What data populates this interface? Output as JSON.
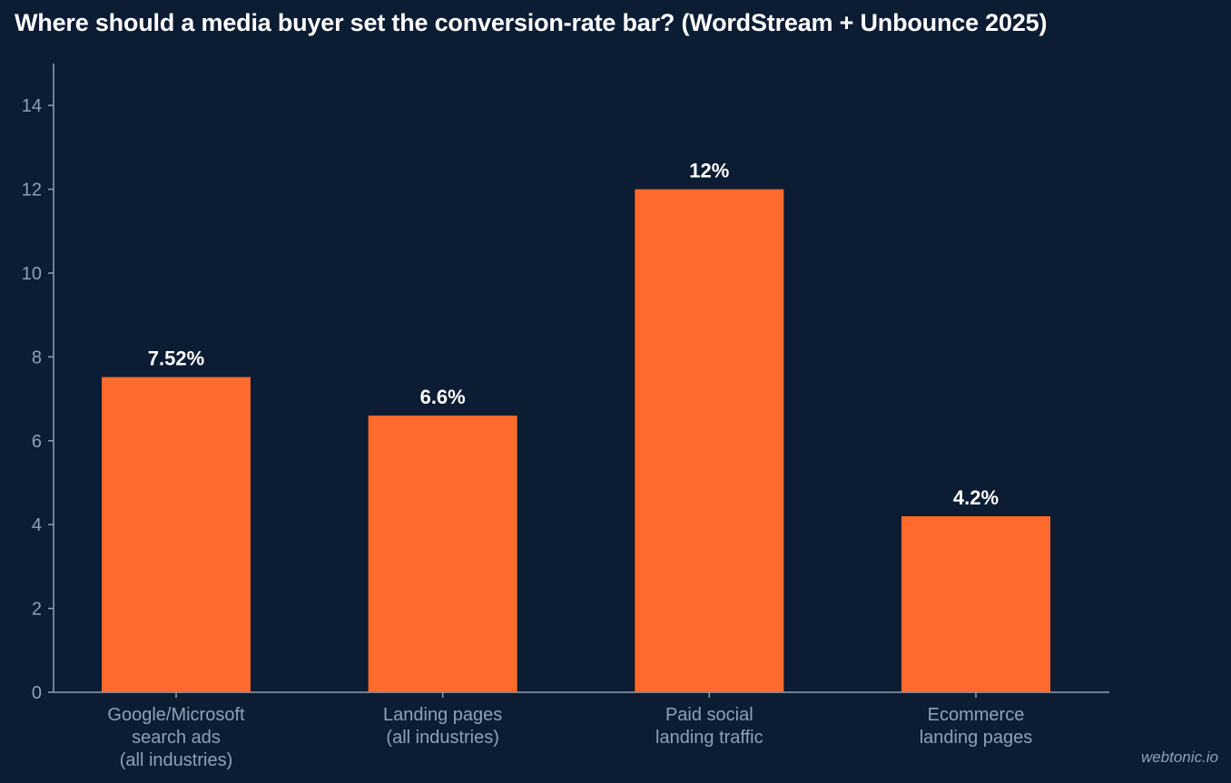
{
  "chart_data": {
    "type": "bar",
    "title": "Where should a media buyer set the conversion-rate bar? (WordStream + Unbounce 2025)",
    "categories": [
      [
        "Google/Microsoft",
        "search ads",
        "(all industries)"
      ],
      [
        "Landing pages",
        "(all industries)"
      ],
      [
        "Paid social",
        "landing traffic"
      ],
      [
        "Ecommerce",
        "landing pages"
      ]
    ],
    "values": [
      7.52,
      6.6,
      12,
      4.2
    ],
    "value_labels": [
      "7.52%",
      "6.6%",
      "12%",
      "4.2%"
    ],
    "ylim": [
      0,
      15
    ],
    "yticks": [
      0,
      2,
      4,
      6,
      8,
      10,
      12,
      14
    ],
    "xlabel": "",
    "ylabel": "",
    "grid": false,
    "colors": {
      "bar": "#ff6b2c",
      "background": "#0b1c33",
      "axis": "#8fa0b8",
      "text": "#ffffff"
    }
  },
  "watermark": "webtonic.io"
}
